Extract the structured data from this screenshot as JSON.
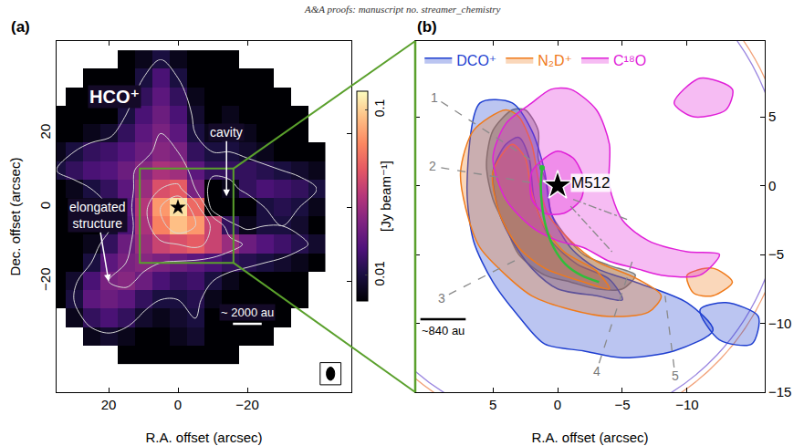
{
  "header": "A&A proofs: manuscript no. streamer_chemistry",
  "chart_data": [
    {
      "panel": "(a)",
      "type": "heatmap",
      "title": "HCO⁺",
      "x_label": "R.A. offset (arcsec)",
      "y_label": "Dec. offset (arcsec)",
      "xlim": [
        35,
        -50
      ],
      "ylim": [
        -50,
        45
      ],
      "xticks": [
        20,
        0,
        -20
      ],
      "yticks": [
        -20,
        0,
        20
      ],
      "grid": false,
      "x": [
        35,
        30,
        25,
        20,
        15,
        10,
        5,
        0,
        -5,
        -10,
        -15,
        -20,
        -25,
        -30,
        -35,
        -40
      ],
      "y": [
        40,
        35,
        30,
        25,
        20,
        15,
        10,
        5,
        0,
        -5,
        -10,
        -15,
        -20,
        -25,
        -30,
        -35,
        -40
      ],
      "z": [
        [
          null,
          null,
          null,
          null,
          0.005,
          0.008,
          0.01,
          0.008,
          0.006,
          0.005,
          0.004,
          null,
          null,
          null,
          null,
          null
        ],
        [
          null,
          null,
          0.004,
          0.005,
          0.006,
          0.01,
          0.014,
          0.01,
          0.007,
          0.005,
          0.006,
          0.005,
          0.004,
          null,
          null,
          null
        ],
        [
          null,
          0.004,
          0.005,
          0.006,
          0.008,
          0.012,
          0.016,
          0.012,
          0.008,
          0.006,
          0.007,
          0.006,
          0.005,
          0.004,
          null,
          null
        ],
        [
          0.004,
          0.005,
          0.006,
          0.007,
          0.01,
          0.014,
          0.018,
          0.014,
          0.009,
          0.007,
          0.008,
          0.007,
          0.006,
          0.005,
          0.004,
          null
        ],
        [
          0.005,
          0.006,
          0.008,
          0.009,
          0.012,
          0.016,
          0.02,
          0.016,
          0.01,
          0.008,
          0.009,
          0.008,
          0.007,
          0.006,
          0.005,
          null
        ],
        [
          0.008,
          0.01,
          0.012,
          0.013,
          0.015,
          0.018,
          0.022,
          0.02,
          0.012,
          0.01,
          0.01,
          0.009,
          0.008,
          0.007,
          0.006,
          0.005
        ],
        [
          0.01,
          0.012,
          0.014,
          0.015,
          0.018,
          0.022,
          0.028,
          0.026,
          0.016,
          0.012,
          0.012,
          0.012,
          0.011,
          0.01,
          0.009,
          0.008
        ],
        [
          0.007,
          0.008,
          0.01,
          0.012,
          0.016,
          0.025,
          0.04,
          0.045,
          0.02,
          0.006,
          0.008,
          0.012,
          0.014,
          0.013,
          0.012,
          0.01
        ],
        [
          0.005,
          0.006,
          0.008,
          0.01,
          0.015,
          0.03,
          0.07,
          0.11,
          0.05,
          0.004,
          0.003,
          0.005,
          0.01,
          0.011,
          0.01,
          0.008
        ],
        [
          0.004,
          0.005,
          0.007,
          0.009,
          0.014,
          0.028,
          0.06,
          0.09,
          0.07,
          0.035,
          0.012,
          0.008,
          0.01,
          0.01,
          0.009,
          0.007
        ],
        [
          0.005,
          0.006,
          0.008,
          0.012,
          0.018,
          0.025,
          0.035,
          0.04,
          0.045,
          0.035,
          0.025,
          0.018,
          0.015,
          0.013,
          0.011,
          0.009
        ],
        [
          0.005,
          0.007,
          0.01,
          0.016,
          0.02,
          0.022,
          0.02,
          0.018,
          0.016,
          0.014,
          0.012,
          0.011,
          0.01,
          0.009,
          0.008,
          0.007
        ],
        [
          0.006,
          0.009,
          0.014,
          0.02,
          0.022,
          0.018,
          0.014,
          0.012,
          0.013,
          0.01,
          0.008,
          0.007,
          0.006,
          0.006,
          0.005,
          null
        ],
        [
          0.005,
          0.01,
          0.016,
          0.018,
          0.016,
          0.012,
          0.01,
          0.01,
          0.011,
          0.008,
          0.006,
          0.005,
          0.005,
          0.004,
          0.004,
          null
        ],
        [
          null,
          0.008,
          0.012,
          0.014,
          0.012,
          0.009,
          0.008,
          0.009,
          0.01,
          0.007,
          0.005,
          0.004,
          0.004,
          0.004,
          null,
          null
        ],
        [
          null,
          null,
          0.008,
          0.009,
          0.008,
          0.007,
          0.007,
          0.008,
          0.009,
          0.006,
          0.005,
          0.004,
          0.004,
          null,
          null,
          null
        ],
        [
          null,
          null,
          null,
          null,
          0.006,
          0.006,
          0.006,
          0.007,
          0.007,
          0.005,
          0.004,
          null,
          null,
          null,
          null,
          null
        ]
      ],
      "colorbar": {
        "label": "[Jy beam⁻¹]",
        "zlim": [
          0.007,
          0.13
        ],
        "zticks": [
          0.1,
          0.01
        ],
        "log": true
      },
      "contour_levels": [
        0.01,
        0.02,
        0.04,
        0.07
      ],
      "marker": "star",
      "star": {
        "x": 0,
        "y": 0
      },
      "annotations": [
        {
          "text": "cavity",
          "x": -14,
          "y": 3
        },
        {
          "text": "elongated structure",
          "x": 20,
          "y": -20
        }
      ],
      "scale_bar": {
        "label": "~ 2000 au",
        "length": 8.3
      }
    },
    {
      "panel": "(b)",
      "type": "contour",
      "x_label": "R.A. offset (arcsec)",
      "xlim": [
        11,
        -16
      ],
      "ylim": [
        -15,
        10.5
      ],
      "xticks": [
        5,
        0,
        -5,
        -10
      ],
      "yticks": [
        5,
        0,
        -5,
        -10,
        -15
      ],
      "grid": false,
      "legend": "top left",
      "series": [
        {
          "color": "#7a7a7a",
          "contours": [
            {
              "x": [
                3.5,
                5,
                5.5,
                5,
                4,
                3,
                1,
                -1,
                -3,
                -5,
                -6,
                -4,
                -2,
                -0.5,
                0.5,
                0.8,
                1.5,
                1.5,
                2.5
              ],
              "y": [
                5.5,
                4,
                1.5,
                -1,
                -3,
                -5,
                -6.5,
                -7,
                -7.5,
                -7.5,
                -6.5,
                -5.8,
                -5,
                -3.5,
                -2,
                0,
                2,
                4,
                5.5
              ]
            }
          ]
        },
        {
          "name": "DCO⁺",
          "color": "#1f3fd0",
          "contours": [
            {
              "x": [
                6,
                7,
                6.5,
                5,
                3,
                1,
                -2,
                -5,
                -9,
                -12,
                -10,
                -6,
                -3,
                -1,
                0.5,
                1,
                2,
                3.5
              ],
              "y": [
                6,
                0,
                -4,
                -7,
                -9.5,
                -11.5,
                -12,
                -12.5,
                -12,
                -10.5,
                -8.5,
                -7,
                -6,
                -4.5,
                -2,
                1,
                4,
                6
              ]
            },
            {
              "x": [
                4,
                5,
                4.5,
                3.5,
                2,
                0,
                -3,
                -5,
                -4,
                -1.5,
                0.5,
                1.8,
                2.2,
                3
              ],
              "y": [
                3,
                1,
                -2,
                -4,
                -6,
                -7.5,
                -8,
                -8.3,
                -6.8,
                -5.7,
                -4,
                -1,
                2,
                3.5
              ]
            },
            {
              "x": [
                -11,
                -13,
                -15.5,
                -15,
                -12.5
              ],
              "y": [
                -9,
                -8.5,
                -9.5,
                -11.5,
                -11.2
              ]
            }
          ]
        },
        {
          "name": "N₂D⁺",
          "color": "#f07a1a",
          "contours": [
            {
              "x": [
                4,
                6.5,
                7.5,
                7,
                6,
                4,
                2,
                -1,
                -4,
                -7,
                -8,
                -6,
                -3,
                -1,
                0.8,
                1.5,
                2,
                3
              ],
              "y": [
                5.5,
                4,
                1,
                -2,
                -4.5,
                -6.5,
                -8,
                -9,
                -9.5,
                -9.2,
                -8,
                -6.7,
                -5.5,
                -4,
                -2,
                0.5,
                3,
                5
              ]
            },
            {
              "x": [
                3.5,
                5,
                4.5,
                3,
                1,
                -2,
                -4,
                -3,
                -0.5,
                1,
                2,
                2.5
              ],
              "y": [
                3,
                1,
                -2,
                -4.5,
                -6,
                -7,
                -7.5,
                -6.2,
                -4.8,
                -3,
                -0.5,
                2
              ]
            },
            {
              "x": [
                -10,
                -12,
                -13.5,
                -12,
                -10.5
              ],
              "y": [
                -6.5,
                -6,
                -7,
                -8,
                -7.8
              ]
            }
          ]
        },
        {
          "name": "C¹⁸O",
          "color": "#e020d8",
          "contours": [
            {
              "x": [
                2,
                4,
                5,
                4,
                2,
                0,
                -2,
                -4,
                -6,
                -8,
                -11,
                -12.5,
                -10,
                -7,
                -5,
                -4,
                -4,
                -3,
                -1,
                0.5
              ],
              "y": [
                6,
                4.5,
                2,
                -1,
                -3,
                -4,
                -4.5,
                -5.5,
                -6,
                -6.5,
                -6.5,
                -5,
                -4.8,
                -4,
                -2.5,
                0,
                3,
                5.5,
                7,
                7
              ]
            },
            {
              "x": [
                1,
                2,
                2,
                1,
                -0.5,
                -1.8,
                -2,
                -1.2,
                0
              ],
              "y": [
                2,
                1,
                -1,
                -2,
                -2,
                -1,
                0.5,
                2,
                2.5
              ]
            },
            {
              "x": [
                -9,
                -10.5,
                -13,
                -13.5,
                -11
              ],
              "y": [
                6,
                5,
                5.5,
                7,
                7.8
              ]
            }
          ]
        }
      ],
      "marker": "star",
      "star": {
        "label": "M512",
        "x": 0,
        "y": 0
      },
      "streamline": {
        "color": "#2fbf3a",
        "x": [
          1.2,
          1.3,
          1.2,
          0.9,
          0.3,
          -0.6,
          -1.8,
          -3.2
        ],
        "y": [
          1.3,
          0,
          -1.5,
          -3,
          -4.5,
          -5.7,
          -6.5,
          -7
        ]
      },
      "cuts": [
        {
          "label": "1",
          "x": [
            9.0,
            1.0
          ],
          "y": [
            6.1,
            1.2
          ],
          "line_style": "dash"
        },
        {
          "label": "2",
          "x": [
            9.0,
            1.3
          ],
          "y": [
            1.3,
            0.1
          ],
          "line_style": "dash"
        },
        {
          "label": "3",
          "x": [
            8.4,
            2.8
          ],
          "y": [
            -7.9,
            -5.2
          ],
          "line_style": "dash"
        },
        {
          "label": "4",
          "x": [
            -3.2,
            -5.8
          ],
          "y": [
            -12.9,
            -5.4
          ],
          "line_style": "dash"
        },
        {
          "label": "5",
          "x": [
            -9.0,
            -8.3
          ],
          "y": [
            -13.2,
            -8.0
          ],
          "line_style": "dash"
        }
      ],
      "guide_lines": [
        {
          "x": [
            -1.2,
            -5.5
          ],
          "y": [
            -1.0,
            -2.5
          ],
          "line_style": "dashdot"
        },
        {
          "x": [
            -1.0,
            -4.2
          ],
          "y": [
            -1.5,
            -4.8
          ],
          "line_style": "dashdot"
        }
      ],
      "circles": [
        {
          "color": "#f2a27a",
          "x": 0,
          "y": 0,
          "r": 17.8
        },
        {
          "color": "#9b86e0",
          "x": 0,
          "y": 0,
          "r": 17.4
        }
      ],
      "scale_bar": {
        "label": "~840 au",
        "length": 3.5
      }
    }
  ]
}
